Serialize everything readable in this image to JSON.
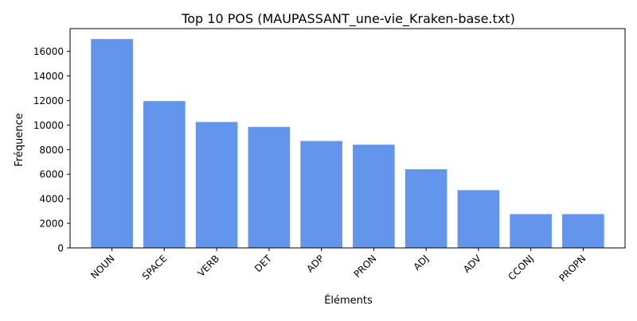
{
  "chart_data": {
    "type": "bar",
    "title": "Top 10 POS (MAUPASSANT_une-vie_Kraken-base.txt)",
    "xlabel": "Éléments",
    "ylabel": "Fréquence",
    "categories": [
      "NOUN",
      "SPACE",
      "VERB",
      "DET",
      "ADP",
      "PRON",
      "ADJ",
      "ADV",
      "CCONJ",
      "PROPN"
    ],
    "values": [
      17000,
      11950,
      10250,
      9850,
      8700,
      8400,
      6400,
      4700,
      2750,
      2750
    ],
    "ylim": [
      0,
      17850
    ],
    "yticks": [
      0,
      2000,
      4000,
      6000,
      8000,
      10000,
      12000,
      14000,
      16000
    ],
    "bar_color": "#6495ED",
    "grid": false,
    "legend": "none"
  }
}
